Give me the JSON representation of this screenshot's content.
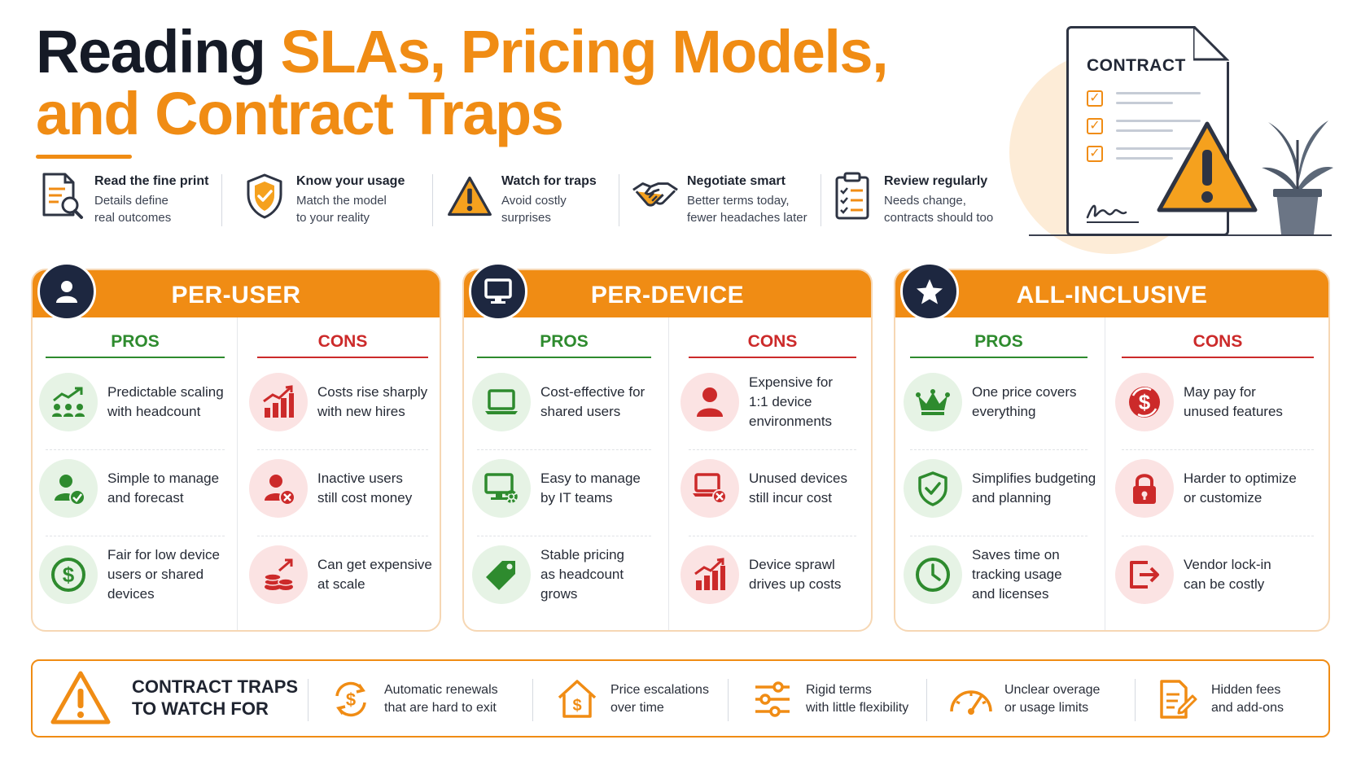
{
  "title": {
    "line1_dark": "Reading ",
    "line1_orange": "SLAs, Pricing Models,",
    "line2_orange": "and Contract Traps"
  },
  "hero": {
    "document_label": "CONTRACT",
    "icons": [
      "contract-document-icon",
      "warning-icon",
      "plant-icon"
    ]
  },
  "tips": [
    {
      "icon": "document-magnifier-icon",
      "title": "Read the fine print",
      "line1": "Details define",
      "line2": "real outcomes"
    },
    {
      "icon": "shield-check-icon",
      "title": "Know your usage",
      "line1": "Match the model",
      "line2": "to your reality"
    },
    {
      "icon": "warning-triangle-icon",
      "title": "Watch for traps",
      "line1": "Avoid costly",
      "line2": "surprises"
    },
    {
      "icon": "handshake-icon",
      "title": "Negotiate smart",
      "line1": "Better terms today,",
      "line2": "fewer headaches later"
    },
    {
      "icon": "clipboard-checklist-icon",
      "title": "Review regularly",
      "line1": "Needs change,",
      "line2": "contracts should too"
    }
  ],
  "models": [
    {
      "title": "PER-USER",
      "badge_icon": "user-icon",
      "pros_label": "PROS",
      "cons_label": "CONS",
      "pros": [
        {
          "icon": "growth-people-icon",
          "lines": [
            "Predictable scaling",
            "with headcount"
          ]
        },
        {
          "icon": "user-check-icon",
          "lines": [
            "Simple to manage",
            "and forecast"
          ]
        },
        {
          "icon": "dollar-circle-icon",
          "lines": [
            "Fair for low device",
            "users or shared",
            "devices"
          ]
        }
      ],
      "cons": [
        {
          "icon": "rising-bars-icon",
          "lines": [
            "Costs rise sharply",
            "with new hires"
          ]
        },
        {
          "icon": "user-x-icon",
          "lines": [
            "Inactive users",
            "still cost money"
          ]
        },
        {
          "icon": "coin-stack-icon",
          "lines": [
            "Can get expensive",
            "at scale"
          ]
        }
      ]
    },
    {
      "title": "PER-DEVICE",
      "badge_icon": "monitor-icon",
      "pros_label": "PROS",
      "cons_label": "CONS",
      "pros": [
        {
          "icon": "laptop-icon",
          "lines": [
            "Cost-effective for",
            "shared users"
          ]
        },
        {
          "icon": "monitor-gear-icon",
          "lines": [
            "Easy to manage",
            "by IT teams"
          ]
        },
        {
          "icon": "price-tag-icon",
          "lines": [
            "Stable pricing",
            "as headcount",
            "grows"
          ]
        }
      ],
      "cons": [
        {
          "icon": "single-user-icon",
          "lines": [
            "Expensive for",
            "1:1 device",
            "environments"
          ]
        },
        {
          "icon": "laptop-x-icon",
          "lines": [
            "Unused devices",
            "still incur cost"
          ]
        },
        {
          "icon": "rising-bars-icon",
          "lines": [
            "Device sprawl",
            "drives up costs"
          ]
        }
      ]
    },
    {
      "title": "ALL-INCLUSIVE",
      "badge_icon": "star-icon",
      "pros_label": "PROS",
      "cons_label": "CONS",
      "pros": [
        {
          "icon": "crown-icon",
          "lines": [
            "One price covers",
            "everything"
          ]
        },
        {
          "icon": "shield-check-icon",
          "lines": [
            "Simplifies budgeting",
            "and planning"
          ]
        },
        {
          "icon": "clock-icon",
          "lines": [
            "Saves time on",
            "tracking usage",
            "and licenses"
          ]
        }
      ],
      "cons": [
        {
          "icon": "dollar-cycle-icon",
          "lines": [
            "May pay for",
            "unused features"
          ]
        },
        {
          "icon": "padlock-icon",
          "lines": [
            "Harder to optimize",
            "or customize"
          ]
        },
        {
          "icon": "exit-door-icon",
          "lines": [
            "Vendor lock-in",
            "can be costly"
          ]
        }
      ]
    }
  ],
  "traps": {
    "heading_line1": "CONTRACT TRAPS",
    "heading_line2": "TO WATCH FOR",
    "heading_icon": "warning-triangle-icon",
    "items": [
      {
        "icon": "dollar-renew-icon",
        "lines": [
          "Automatic renewals",
          "that are hard to exit"
        ]
      },
      {
        "icon": "house-dollar-icon",
        "lines": [
          "Price escalations",
          "over time"
        ]
      },
      {
        "icon": "sliders-icon",
        "lines": [
          "Rigid terms",
          "with little flexibility"
        ]
      },
      {
        "icon": "gauge-icon",
        "lines": [
          "Unclear overage",
          "or usage limits"
        ]
      },
      {
        "icon": "document-pen-icon",
        "lines": [
          "Hidden fees",
          "and add-ons"
        ]
      }
    ]
  },
  "colors": {
    "accent": "#f08c14",
    "pros": "#2e8b2e",
    "cons": "#cc2a2a",
    "navy": "#1d2740"
  }
}
